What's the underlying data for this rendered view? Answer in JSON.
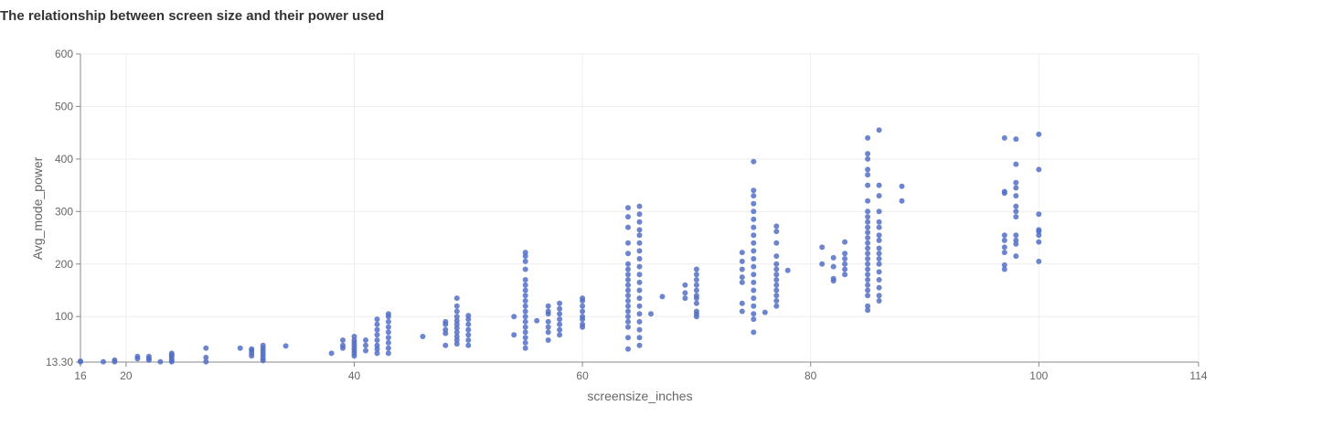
{
  "chart_data": {
    "type": "scatter",
    "title": "The relationship between screen size and their power used",
    "xlabel": "screensize_inches",
    "ylabel": "Avg_mode_power",
    "xlim": [
      16,
      114
    ],
    "ylim": [
      13.3,
      600
    ],
    "x_ticks": [
      16,
      20,
      40,
      60,
      80,
      100,
      114
    ],
    "x_tick_labels": [
      "16",
      "20",
      "40",
      "60",
      "80",
      "100",
      "114"
    ],
    "y_ticks": [
      13.3,
      100,
      200,
      300,
      400,
      500,
      600
    ],
    "y_tick_labels": [
      "13.30",
      "100",
      "200",
      "300",
      "400",
      "500",
      "600"
    ],
    "grid": true,
    "color": "#5470c6",
    "series": [
      {
        "points": [
          [
            16,
            14
          ],
          [
            16,
            15
          ],
          [
            18,
            14
          ],
          [
            19,
            14
          ],
          [
            19,
            17
          ],
          [
            21,
            20
          ],
          [
            21,
            24
          ],
          [
            22,
            17
          ],
          [
            22,
            20
          ],
          [
            22,
            24
          ],
          [
            23,
            14
          ],
          [
            24,
            16
          ],
          [
            24,
            20
          ],
          [
            24,
            24
          ],
          [
            24,
            27
          ],
          [
            24,
            30
          ],
          [
            24,
            14
          ],
          [
            27,
            22
          ],
          [
            27,
            40
          ],
          [
            27,
            14
          ],
          [
            30,
            40
          ],
          [
            31,
            25
          ],
          [
            31,
            30
          ],
          [
            31,
            35
          ],
          [
            31,
            38
          ],
          [
            32,
            20
          ],
          [
            32,
            25
          ],
          [
            32,
            30
          ],
          [
            32,
            35
          ],
          [
            32,
            40
          ],
          [
            32,
            45
          ],
          [
            32,
            16
          ],
          [
            34,
            44
          ],
          [
            38,
            30
          ],
          [
            39,
            40
          ],
          [
            39,
            45
          ],
          [
            39,
            55
          ],
          [
            40,
            25
          ],
          [
            40,
            30
          ],
          [
            40,
            35
          ],
          [
            40,
            40
          ],
          [
            40,
            45
          ],
          [
            40,
            50
          ],
          [
            40,
            55
          ],
          [
            40,
            62
          ],
          [
            41,
            35
          ],
          [
            41,
            45
          ],
          [
            41,
            55
          ],
          [
            42,
            30
          ],
          [
            42,
            38
          ],
          [
            42,
            45
          ],
          [
            42,
            55
          ],
          [
            42,
            65
          ],
          [
            42,
            75
          ],
          [
            42,
            85
          ],
          [
            42,
            95
          ],
          [
            43,
            30
          ],
          [
            43,
            40
          ],
          [
            43,
            50
          ],
          [
            43,
            60
          ],
          [
            43,
            70
          ],
          [
            43,
            80
          ],
          [
            43,
            90
          ],
          [
            43,
            100
          ],
          [
            43,
            105
          ],
          [
            46,
            62
          ],
          [
            48,
            45
          ],
          [
            48,
            68
          ],
          [
            48,
            75
          ],
          [
            48,
            85
          ],
          [
            48,
            90
          ],
          [
            49,
            48
          ],
          [
            49,
            55
          ],
          [
            49,
            62
          ],
          [
            49,
            70
          ],
          [
            49,
            78
          ],
          [
            49,
            85
          ],
          [
            49,
            92
          ],
          [
            49,
            100
          ],
          [
            49,
            110
          ],
          [
            49,
            120
          ],
          [
            49,
            135
          ],
          [
            50,
            45
          ],
          [
            50,
            55
          ],
          [
            50,
            65
          ],
          [
            50,
            75
          ],
          [
            50,
            85
          ],
          [
            50,
            95
          ],
          [
            50,
            102
          ],
          [
            54,
            65
          ],
          [
            54,
            100
          ],
          [
            55,
            40
          ],
          [
            55,
            50
          ],
          [
            55,
            60
          ],
          [
            55,
            70
          ],
          [
            55,
            80
          ],
          [
            55,
            90
          ],
          [
            55,
            100
          ],
          [
            55,
            110
          ],
          [
            55,
            120
          ],
          [
            55,
            130
          ],
          [
            55,
            140
          ],
          [
            55,
            150
          ],
          [
            55,
            160
          ],
          [
            55,
            170
          ],
          [
            55,
            190
          ],
          [
            55,
            205
          ],
          [
            55,
            215
          ],
          [
            55,
            222
          ],
          [
            56,
            92
          ],
          [
            57,
            55
          ],
          [
            57,
            70
          ],
          [
            57,
            80
          ],
          [
            57,
            90
          ],
          [
            57,
            105
          ],
          [
            57,
            110
          ],
          [
            57,
            120
          ],
          [
            58,
            65
          ],
          [
            58,
            75
          ],
          [
            58,
            85
          ],
          [
            58,
            95
          ],
          [
            58,
            105
          ],
          [
            58,
            115
          ],
          [
            58,
            125
          ],
          [
            60,
            80
          ],
          [
            60,
            85
          ],
          [
            60,
            95
          ],
          [
            60,
            100
          ],
          [
            60,
            110
          ],
          [
            60,
            120
          ],
          [
            60,
            130
          ],
          [
            60,
            135
          ],
          [
            64,
            38
          ],
          [
            64,
            60
          ],
          [
            64,
            80
          ],
          [
            64,
            90
          ],
          [
            64,
            100
          ],
          [
            64,
            110
          ],
          [
            64,
            120
          ],
          [
            64,
            130
          ],
          [
            64,
            140
          ],
          [
            64,
            150
          ],
          [
            64,
            160
          ],
          [
            64,
            170
          ],
          [
            64,
            180
          ],
          [
            64,
            190
          ],
          [
            64,
            200
          ],
          [
            64,
            220
          ],
          [
            64,
            240
          ],
          [
            64,
            270
          ],
          [
            64,
            290
          ],
          [
            64,
            307
          ],
          [
            65,
            45
          ],
          [
            65,
            60
          ],
          [
            65,
            75
          ],
          [
            65,
            90
          ],
          [
            65,
            105
          ],
          [
            65,
            120
          ],
          [
            65,
            135
          ],
          [
            65,
            150
          ],
          [
            65,
            165
          ],
          [
            65,
            180
          ],
          [
            65,
            195
          ],
          [
            65,
            210
          ],
          [
            65,
            225
          ],
          [
            65,
            240
          ],
          [
            65,
            255
          ],
          [
            65,
            265
          ],
          [
            65,
            280
          ],
          [
            65,
            295
          ],
          [
            65,
            310
          ],
          [
            66,
            105
          ],
          [
            67,
            138
          ],
          [
            69,
            135
          ],
          [
            69,
            145
          ],
          [
            69,
            160
          ],
          [
            70,
            100
          ],
          [
            70,
            105
          ],
          [
            70,
            110
          ],
          [
            70,
            125
          ],
          [
            70,
            135
          ],
          [
            70,
            140
          ],
          [
            70,
            150
          ],
          [
            70,
            160
          ],
          [
            70,
            170
          ],
          [
            70,
            180
          ],
          [
            70,
            190
          ],
          [
            74,
            110
          ],
          [
            74,
            125
          ],
          [
            74,
            165
          ],
          [
            74,
            175
          ],
          [
            74,
            190
          ],
          [
            74,
            205
          ],
          [
            74,
            222
          ],
          [
            75,
            70
          ],
          [
            75,
            95
          ],
          [
            75,
            105
          ],
          [
            75,
            120
          ],
          [
            75,
            135
          ],
          [
            75,
            150
          ],
          [
            75,
            165
          ],
          [
            75,
            180
          ],
          [
            75,
            195
          ],
          [
            75,
            210
          ],
          [
            75,
            225
          ],
          [
            75,
            240
          ],
          [
            75,
            255
          ],
          [
            75,
            270
          ],
          [
            75,
            285
          ],
          [
            75,
            300
          ],
          [
            75,
            315
          ],
          [
            75,
            330
          ],
          [
            75,
            340
          ],
          [
            75,
            395
          ],
          [
            76,
            108
          ],
          [
            77,
            120
          ],
          [
            77,
            130
          ],
          [
            77,
            140
          ],
          [
            77,
            150
          ],
          [
            77,
            160
          ],
          [
            77,
            170
          ],
          [
            77,
            180
          ],
          [
            77,
            190
          ],
          [
            77,
            200
          ],
          [
            77,
            215
          ],
          [
            77,
            240
          ],
          [
            77,
            262
          ],
          [
            77,
            272
          ],
          [
            78,
            188
          ],
          [
            81,
            200
          ],
          [
            81,
            232
          ],
          [
            82,
            168
          ],
          [
            82,
            172
          ],
          [
            82,
            195
          ],
          [
            82,
            212
          ],
          [
            83,
            180
          ],
          [
            83,
            190
          ],
          [
            83,
            200
          ],
          [
            83,
            210
          ],
          [
            83,
            220
          ],
          [
            83,
            242
          ],
          [
            85,
            112
          ],
          [
            85,
            120
          ],
          [
            85,
            140
          ],
          [
            85,
            150
          ],
          [
            85,
            160
          ],
          [
            85,
            170
          ],
          [
            85,
            180
          ],
          [
            85,
            190
          ],
          [
            85,
            200
          ],
          [
            85,
            210
          ],
          [
            85,
            220
          ],
          [
            85,
            230
          ],
          [
            85,
            240
          ],
          [
            85,
            250
          ],
          [
            85,
            260
          ],
          [
            85,
            270
          ],
          [
            85,
            280
          ],
          [
            85,
            290
          ],
          [
            85,
            300
          ],
          [
            85,
            320
          ],
          [
            85,
            350
          ],
          [
            85,
            370
          ],
          [
            85,
            380
          ],
          [
            85,
            400
          ],
          [
            85,
            410
          ],
          [
            85,
            440
          ],
          [
            86,
            130
          ],
          [
            86,
            140
          ],
          [
            86,
            155
          ],
          [
            86,
            170
          ],
          [
            86,
            185
          ],
          [
            86,
            200
          ],
          [
            86,
            210
          ],
          [
            86,
            220
          ],
          [
            86,
            230
          ],
          [
            86,
            245
          ],
          [
            86,
            255
          ],
          [
            86,
            270
          ],
          [
            86,
            280
          ],
          [
            86,
            300
          ],
          [
            86,
            330
          ],
          [
            86,
            350
          ],
          [
            86,
            455
          ],
          [
            88,
            320
          ],
          [
            88,
            348
          ],
          [
            97,
            190
          ],
          [
            97,
            198
          ],
          [
            97,
            222
          ],
          [
            97,
            232
          ],
          [
            97,
            245
          ],
          [
            97,
            255
          ],
          [
            97,
            335
          ],
          [
            97,
            338
          ],
          [
            97,
            440
          ],
          [
            98,
            215
          ],
          [
            98,
            238
          ],
          [
            98,
            245
          ],
          [
            98,
            255
          ],
          [
            98,
            290
          ],
          [
            98,
            300
          ],
          [
            98,
            310
          ],
          [
            98,
            330
          ],
          [
            98,
            345
          ],
          [
            98,
            355
          ],
          [
            98,
            390
          ],
          [
            98,
            438
          ],
          [
            100,
            205
          ],
          [
            100,
            242
          ],
          [
            100,
            255
          ],
          [
            100,
            262
          ],
          [
            100,
            265
          ],
          [
            100,
            295
          ],
          [
            100,
            380
          ],
          [
            100,
            447
          ]
        ]
      }
    ]
  }
}
